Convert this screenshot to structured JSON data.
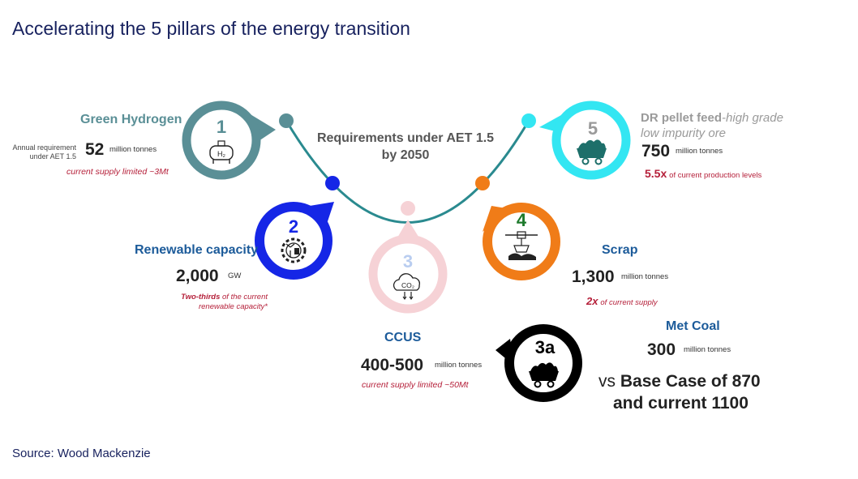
{
  "title": "Accelerating the 5 pillars of the energy transition",
  "center": {
    "line1": "Requirements under AET 1.5",
    "line2": "by 2050"
  },
  "pillars": {
    "p1": {
      "number": "1",
      "label": "Green Hydrogen",
      "annual_label_1": "Annual requirement",
      "annual_label_2": "under AET 1.5",
      "value": "52",
      "unit": "million tonnes",
      "note": "current supply limited ~3Mt",
      "icon_text": "H₂",
      "color": "#5a8f96"
    },
    "p2": {
      "number": "2",
      "label": "Renewable capacity",
      "value": "2,000",
      "unit": "GW",
      "note_bold": "Two-thirds",
      "note_rest": "of the current",
      "note_line2": "renewable capacity*",
      "color": "#1526e6"
    },
    "p3": {
      "number": "3",
      "label": "CCUS",
      "value": "400-500",
      "unit": "million tonnes",
      "note": "current supply limited ~50Mt",
      "icon_text": "CO₂",
      "color": "#f6d2d6"
    },
    "p4": {
      "number": "4",
      "label": "Scrap",
      "value": "1,300",
      "unit": "million tonnes",
      "note_bold": "2x",
      "note_rest": "of current supply",
      "color": "#f07c18"
    },
    "p5": {
      "number": "5",
      "label_bold": "DR pellet feed",
      "label_rest": "-high grade",
      "label_line2": "low impurity ore",
      "value": "750",
      "unit": "million tonnes",
      "note_bold": "5.5x",
      "note_rest": "of current production levels",
      "color": "#33e6f2"
    },
    "p3a": {
      "number": "3a",
      "label": "Met Coal",
      "value": "300",
      "unit": "million tonnes",
      "vs_prefix": "vs",
      "vs_line1": "Base Case of 870",
      "vs_line2": "and current 1100",
      "color": "#000000"
    }
  },
  "source": "Source: Wood Mackenzie",
  "colors": {
    "title": "#17215e",
    "label_blue": "#1c5b9a",
    "note_red": "#b5203a",
    "arc": "#2a8a8f"
  }
}
